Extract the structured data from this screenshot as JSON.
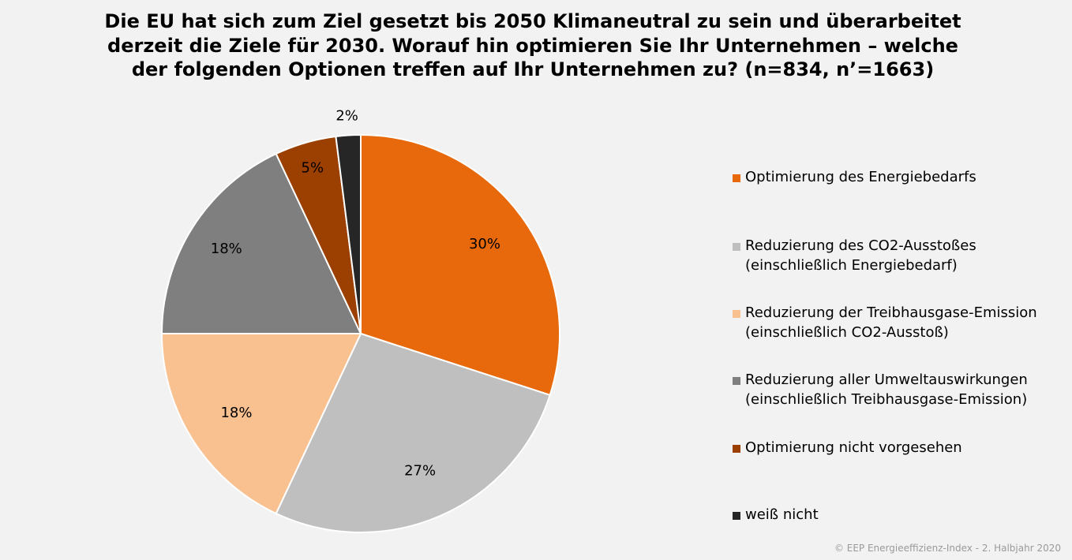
{
  "chart_data": {
    "type": "pie",
    "title": "Die EU hat sich zum Ziel gesetzt bis 2050 Klimaneutral zu sein und überarbeitet derzeit die Ziele für 2030. Worauf hin optimieren Sie Ihr Unternehmen – welche der folgenden Optionen treffen auf Ihr Unternehmen zu? (n=834, n’=1663)",
    "slices": [
      {
        "label": "Optimierung des Energiebedarfs",
        "value": 30,
        "display": "30%",
        "color": "#e8690c"
      },
      {
        "label": "Reduzierung des CO2-Ausstoßes\n(einschließlich Energiebedarf)",
        "value": 27,
        "display": "27%",
        "color": "#bfbfbf"
      },
      {
        "label": "Reduzierung der Treibhausgase-Emission\n(einschließlich CO2-Ausstoß)",
        "value": 18,
        "display": "18%",
        "color": "#f9c090"
      },
      {
        "label": "Reduzierung aller Umweltauswirkungen\n(einschließlich Treibhausgase-Emission)",
        "value": 18,
        "display": "18%",
        "color": "#7f7f7f"
      },
      {
        "label": "Optimierung nicht vorgesehen",
        "value": 5,
        "display": "5%",
        "color": "#9b4000"
      },
      {
        "label": "weiß nicht",
        "value": 2,
        "display": "2%",
        "color": "#262626"
      }
    ],
    "legend_position": "right"
  },
  "footer": "© EEP Energieeffizienz-Index - 2. Halbjahr 2020"
}
